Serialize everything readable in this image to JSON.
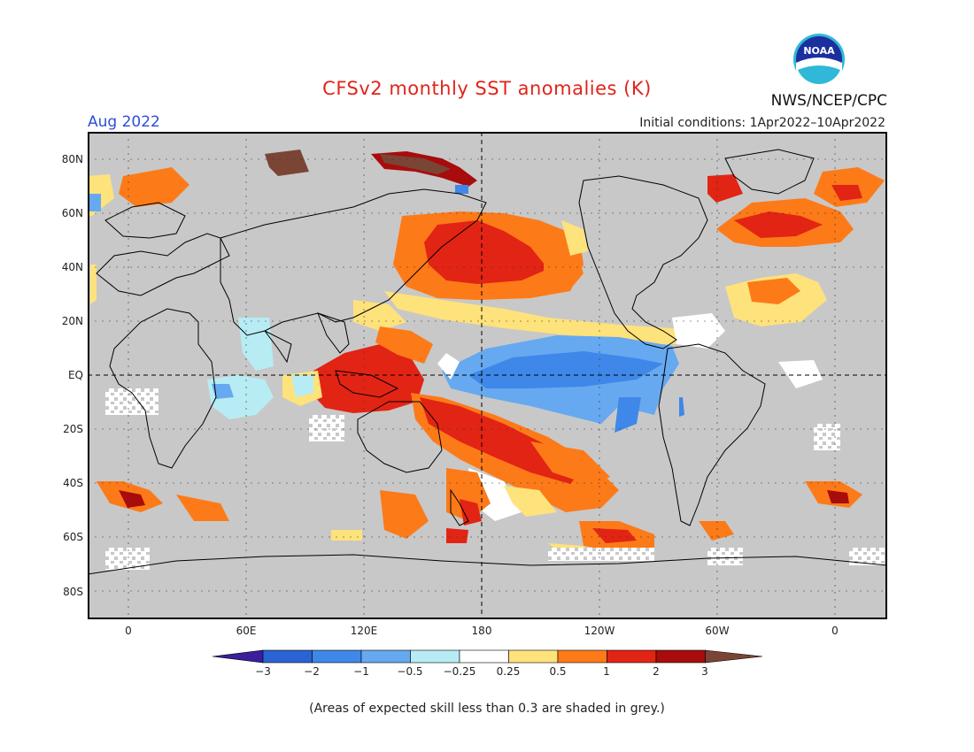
{
  "header": {
    "title": "CFSv2 monthly SST anomalies (K)",
    "agency": "NWS/NCEP/CPC",
    "logo_text": "NOAA",
    "month": "Aug 2022",
    "initial_conditions": "Initial conditions: 1Apr2022–10Apr2022"
  },
  "map": {
    "projection": "cylindrical equidistant",
    "land_color": "#c8c8c8",
    "lat_labels": [
      "80N",
      "60N",
      "40N",
      "20N",
      "EQ",
      "20S",
      "40S",
      "60S",
      "80S"
    ],
    "lon_labels": [
      "0",
      "60E",
      "120E",
      "180",
      "120W",
      "60W",
      "0"
    ]
  },
  "colorbar": {
    "labels": [
      "−3",
      "−2",
      "−1",
      "−0.5",
      "−0.25",
      "0.25",
      "0.5",
      "1",
      "2",
      "3"
    ],
    "colors": [
      "#3a1e9e",
      "#2a63d2",
      "#3f87e8",
      "#66a9f0",
      "#b7ecf4",
      "#ffffff",
      "#fee27b",
      "#fd7a18",
      "#e22414",
      "#a80c0c",
      "#7a4535"
    ]
  },
  "footnote": "(Areas of expected skill less than 0.3 are shaded in grey.)"
}
